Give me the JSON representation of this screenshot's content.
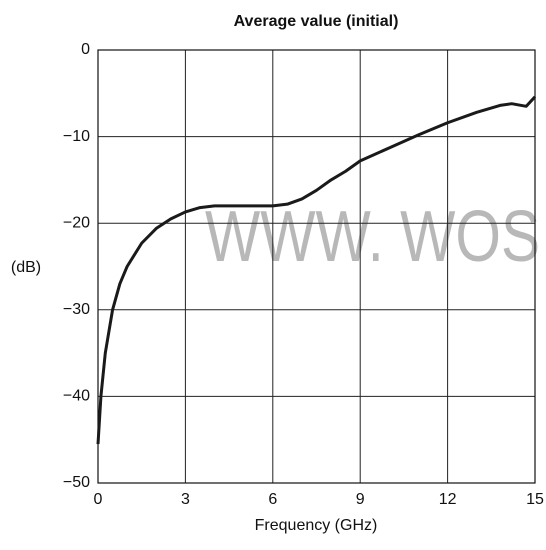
{
  "chart_data": {
    "type": "line",
    "title": "Average value (initial)",
    "xlabel": "Frequency (GHz)",
    "ylabel": "(dB)",
    "watermark": "WWW. WOS",
    "xlim": [
      0,
      15
    ],
    "xticks": [
      0,
      3,
      6,
      9,
      12,
      15
    ],
    "ylim": [
      -50,
      0
    ],
    "yticks": [
      {
        "value": -50,
        "label": "−50"
      },
      {
        "value": -40,
        "label": "−40"
      },
      {
        "value": -30,
        "label": "−30"
      },
      {
        "value": -20,
        "label": "−20"
      },
      {
        "value": -10,
        "label": "−10"
      },
      0
    ],
    "grid": true,
    "series": [
      {
        "color": "#1a1a1a",
        "x": [
          0,
          0.1,
          0.25,
          0.5,
          0.75,
          1,
          1.5,
          2,
          2.5,
          3,
          3.5,
          4,
          5,
          6,
          6.5,
          7,
          7.5,
          8,
          8.5,
          9,
          10,
          11,
          12,
          13,
          13.8,
          14.2,
          14.7,
          15
        ],
        "values": [
          -45.5,
          -40,
          -35,
          -30,
          -27,
          -25,
          -22.3,
          -20.6,
          -19.5,
          -18.7,
          -18.2,
          -18,
          -18,
          -18,
          -17.8,
          -17.2,
          -16.2,
          -15,
          -14,
          -12.8,
          -11.3,
          -9.8,
          -8.4,
          -7.2,
          -6.4,
          -6.2,
          -6.5,
          -5.4
        ]
      }
    ]
  }
}
